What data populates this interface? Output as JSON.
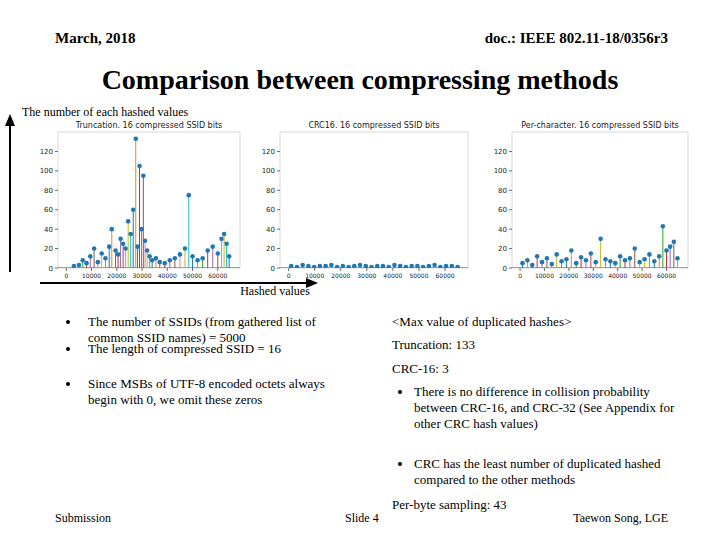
{
  "header": {
    "date": "March, 2018",
    "doc": "doc.: IEEE 802.11-18/0356r3"
  },
  "title": "Comparison between compressing methods",
  "y_caption": "The number of each hashed values",
  "x_caption": "Hashed values",
  "left_bullets": [
    "The number of SSIDs (from gathered list of common SSID names) = 5000",
    "The length of compressed SSID = 16",
    "Since MSBs of UTF-8 encoded octets always begin with 0, we omit these zeros"
  ],
  "right": {
    "heading": "<Max value of duplicated hashes>",
    "lines": [
      "Truncation: 133",
      "CRC-16: 3"
    ],
    "bullets": [
      "There is no difference in collision probability between CRC-16, and CRC-32 (See Appendix for other CRC hash values)",
      "CRC has the least number of duplicated hashed compared to the other methods"
    ],
    "last": "Per-byte sampling: 43"
  },
  "footer": {
    "left": "Submission",
    "center": "Slide 4",
    "right": "Taewon Song, LGE"
  },
  "chart_data": [
    {
      "type": "stem",
      "title": "Truncation. 16 compressed SSID bits",
      "color": "#1f77b4",
      "marker": "circle",
      "x": [
        3000,
        5000,
        6500,
        8000,
        9500,
        11000,
        12500,
        14000,
        15500,
        17000,
        18000,
        19500,
        20500,
        21500,
        22500,
        23500,
        24500,
        25500,
        26500,
        27500,
        28200,
        29000,
        29800,
        30500,
        31200,
        32000,
        33000,
        34000,
        35500,
        37000,
        39000,
        41000,
        43000,
        45000,
        47000,
        48500,
        50000,
        52000,
        54000,
        56000,
        58000,
        60000,
        61500,
        62500,
        63500,
        64500
      ],
      "values": [
        2,
        3,
        8,
        5,
        12,
        20,
        6,
        15,
        10,
        22,
        40,
        18,
        14,
        30,
        25,
        20,
        48,
        35,
        60,
        133,
        22,
        105,
        40,
        95,
        28,
        18,
        12,
        8,
        10,
        6,
        5,
        8,
        10,
        14,
        20,
        75,
        12,
        8,
        10,
        18,
        22,
        15,
        30,
        35,
        25,
        12
      ],
      "xlim": [
        -3300,
        68800
      ],
      "ylim": [
        0,
        140
      ],
      "xticks": [
        0,
        10000,
        20000,
        30000,
        40000,
        50000,
        60000
      ],
      "yticks": [
        0,
        20,
        40,
        60,
        80,
        100,
        120
      ]
    },
    {
      "type": "stem",
      "title": "CRC16. 16 compressed SSID bits",
      "color": "#1f77b4",
      "marker": "circle",
      "x": [
        1000,
        3200,
        5400,
        7600,
        9800,
        12000,
        14200,
        16400,
        18600,
        20800,
        23000,
        25200,
        27400,
        29600,
        31800,
        34000,
        36200,
        38400,
        40600,
        42800,
        45000,
        47200,
        49400,
        51600,
        53800,
        56000,
        58200,
        60400,
        62600,
        64800
      ],
      "values": [
        2,
        1,
        3,
        2,
        1,
        2,
        2,
        3,
        1,
        2,
        1,
        2,
        3,
        2,
        1,
        2,
        2,
        1,
        3,
        2,
        1,
        2,
        2,
        1,
        2,
        3,
        1,
        2,
        2,
        1
      ],
      "xlim": [
        -3300,
        68800
      ],
      "ylim": [
        0,
        140
      ],
      "xticks": [
        0,
        10000,
        20000,
        30000,
        40000,
        50000,
        60000
      ],
      "yticks": [
        0,
        20,
        40,
        60,
        80,
        100,
        120
      ]
    },
    {
      "type": "stem",
      "title": "Per-character. 16 compressed SSID bits",
      "color": "#1f77b4",
      "marker": "circle",
      "x": [
        1000,
        3000,
        5000,
        7000,
        9000,
        11000,
        13000,
        15000,
        17000,
        19000,
        21000,
        23000,
        25000,
        27000,
        29000,
        31000,
        33000,
        35000,
        37000,
        39000,
        41000,
        43000,
        45000,
        47000,
        49000,
        51000,
        53000,
        55000,
        57000,
        58500,
        60000,
        61500,
        63000,
        64500
      ],
      "values": [
        5,
        8,
        3,
        12,
        6,
        10,
        4,
        14,
        7,
        9,
        18,
        5,
        11,
        8,
        15,
        6,
        30,
        9,
        7,
        5,
        12,
        8,
        10,
        20,
        6,
        9,
        14,
        7,
        12,
        43,
        18,
        22,
        27,
        10
      ],
      "xlim": [
        -3300,
        68800
      ],
      "ylim": [
        0,
        140
      ],
      "xticks": [
        0,
        10000,
        20000,
        30000,
        40000,
        50000,
        60000
      ],
      "yticks": [
        0,
        20,
        40,
        60,
        80,
        100,
        120
      ]
    }
  ]
}
